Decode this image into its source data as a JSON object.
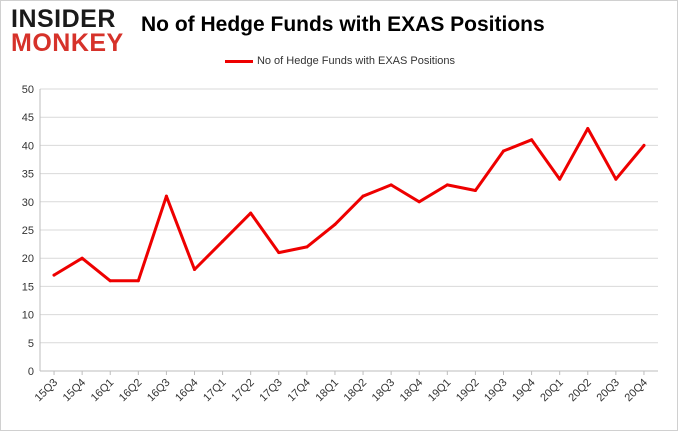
{
  "logo": {
    "line1": "INSIDER",
    "line2": "MONKEY"
  },
  "chart_data": {
    "type": "line",
    "title": "No of Hedge Funds with EXAS Positions",
    "xlabel": "",
    "ylabel": "",
    "ylim": [
      0,
      50
    ],
    "yticks": [
      0,
      5,
      10,
      15,
      20,
      25,
      30,
      35,
      40,
      45,
      50
    ],
    "grid": true,
    "legend_position": "top-center",
    "categories": [
      "15Q3",
      "15Q4",
      "16Q1",
      "16Q2",
      "16Q3",
      "16Q4",
      "17Q1",
      "17Q2",
      "17Q3",
      "17Q4",
      "18Q1",
      "18Q2",
      "18Q3",
      "18Q4",
      "19Q1",
      "19Q2",
      "19Q3",
      "19Q4",
      "20Q1",
      "20Q2",
      "20Q3",
      "20Q4"
    ],
    "series": [
      {
        "name": "No of Hedge Funds with EXAS Positions",
        "color": "#ee0000",
        "values": [
          17,
          20,
          16,
          16,
          31,
          18,
          23,
          28,
          21,
          22,
          26,
          31,
          33,
          30,
          33,
          32,
          39,
          41,
          34,
          43,
          34,
          40
        ]
      }
    ]
  }
}
